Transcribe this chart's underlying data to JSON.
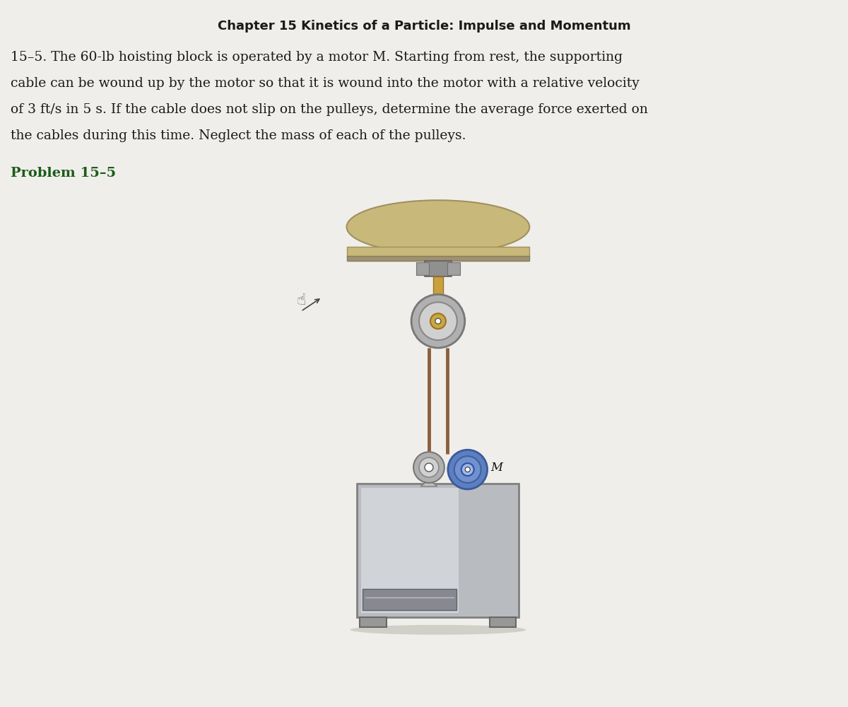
{
  "title": "Chapter 15 Kinetics of a Particle: Impulse and Momentum",
  "title_fontsize": 13,
  "title_color": "#1a1a1a",
  "problem_label": "Problem 15–5",
  "motor_label": "M",
  "bg_color": "#f0eeea",
  "text_color": "#1a1a1a",
  "problem_label_color": "#1a5c1a",
  "body_fontsize": 13.5,
  "label_fontsize": 14,
  "lines": [
    "15–5. The 60-lb hoisting block is operated by a motor M. Starting from rest, the supporting",
    "cable can be wound up by the motor so that it is wound into the motor with a relative velocity",
    "of 3 ft/s in 5 s. If the cable does not slip on the pulleys, determine the average force exerted on",
    "the cables during this time. Neglect the mass of each of the pulleys."
  ],
  "cable_color": "#8B5E3C",
  "dome_color": "#c8b87a",
  "dome_edge": "#a09060",
  "pulley_outer_color": "#b0b0b0",
  "pulley_mid_color": "#d0d0d0",
  "pulley_hub_color": "#c8a840",
  "motor_outer_color": "#5b7fc0",
  "motor_mid_color": "#7090d0",
  "motor_hub_color": "#a0b8e8",
  "block_color": "#b8bcc0",
  "block_highlight": "#d0d4d8",
  "slot_color": "#888890"
}
